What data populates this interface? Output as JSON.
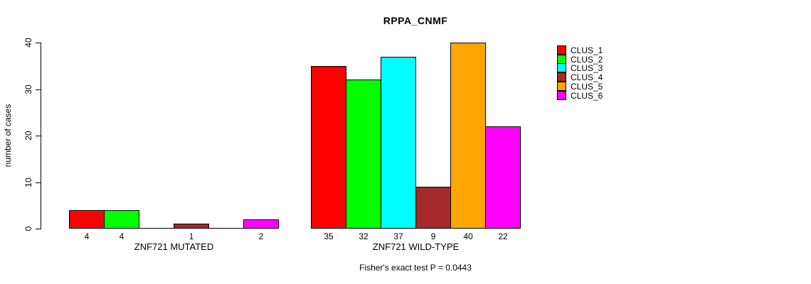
{
  "chart_data": {
    "type": "bar",
    "title": "RPPA_CNMF",
    "xlabel": "",
    "ylabel": "number of cases",
    "ylim": [
      0,
      40
    ],
    "yticks": [
      0,
      10,
      20,
      30,
      40
    ],
    "grid": false,
    "legend_position": "right",
    "categories": [
      "ZNF721 MUTATED",
      "ZNF721 WILD-TYPE"
    ],
    "series": [
      {
        "name": "CLUS_1",
        "color": "#FF0000",
        "values": [
          4,
          35
        ]
      },
      {
        "name": "CLUS_2",
        "color": "#00FF00",
        "values": [
          4,
          32
        ]
      },
      {
        "name": "CLUS_3",
        "color": "#00FFFF",
        "values": [
          0,
          37
        ]
      },
      {
        "name": "CLUS_4",
        "color": "#A52A2A",
        "values": [
          1,
          9
        ]
      },
      {
        "name": "CLUS_5",
        "color": "#FFA500",
        "values": [
          0,
          40
        ]
      },
      {
        "name": "CLUS_6",
        "color": "#FF00FF",
        "values": [
          2,
          22
        ]
      }
    ],
    "bar_value_labels": {
      "ZNF721 MUTATED": [
        "4",
        "4",
        "",
        "1",
        "",
        "2"
      ],
      "ZNF721 WILD-TYPE": [
        "35",
        "32",
        "37",
        "9",
        "40",
        "22"
      ]
    },
    "footnote": "Fisher's exact test P = 0.0443"
  }
}
